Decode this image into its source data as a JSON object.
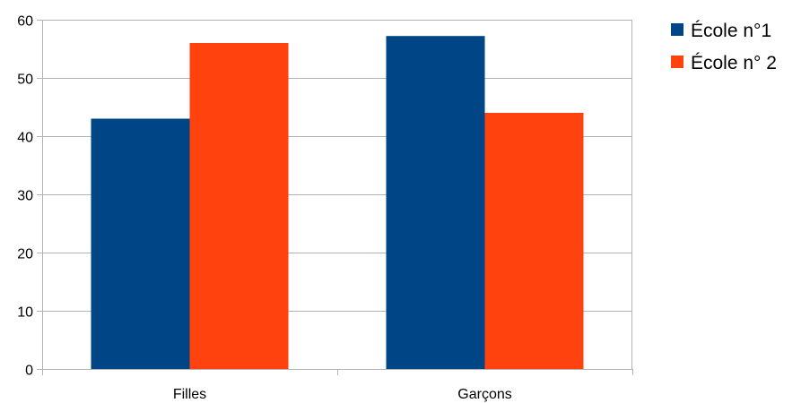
{
  "chart_data": {
    "type": "bar",
    "categories": [
      "Filles",
      "Garçons"
    ],
    "series": [
      {
        "name": "École n°1",
        "values": [
          43,
          57.2
        ],
        "color": "#004586"
      },
      {
        "name": "École n° 2",
        "values": [
          56,
          44
        ],
        "color": "#ff420e"
      }
    ],
    "ylim": [
      0,
      60
    ],
    "yticks": [
      0,
      10,
      20,
      30,
      40,
      50,
      60
    ],
    "grid": true,
    "legend": "right",
    "title": "",
    "xlabel": "",
    "ylabel": ""
  }
}
